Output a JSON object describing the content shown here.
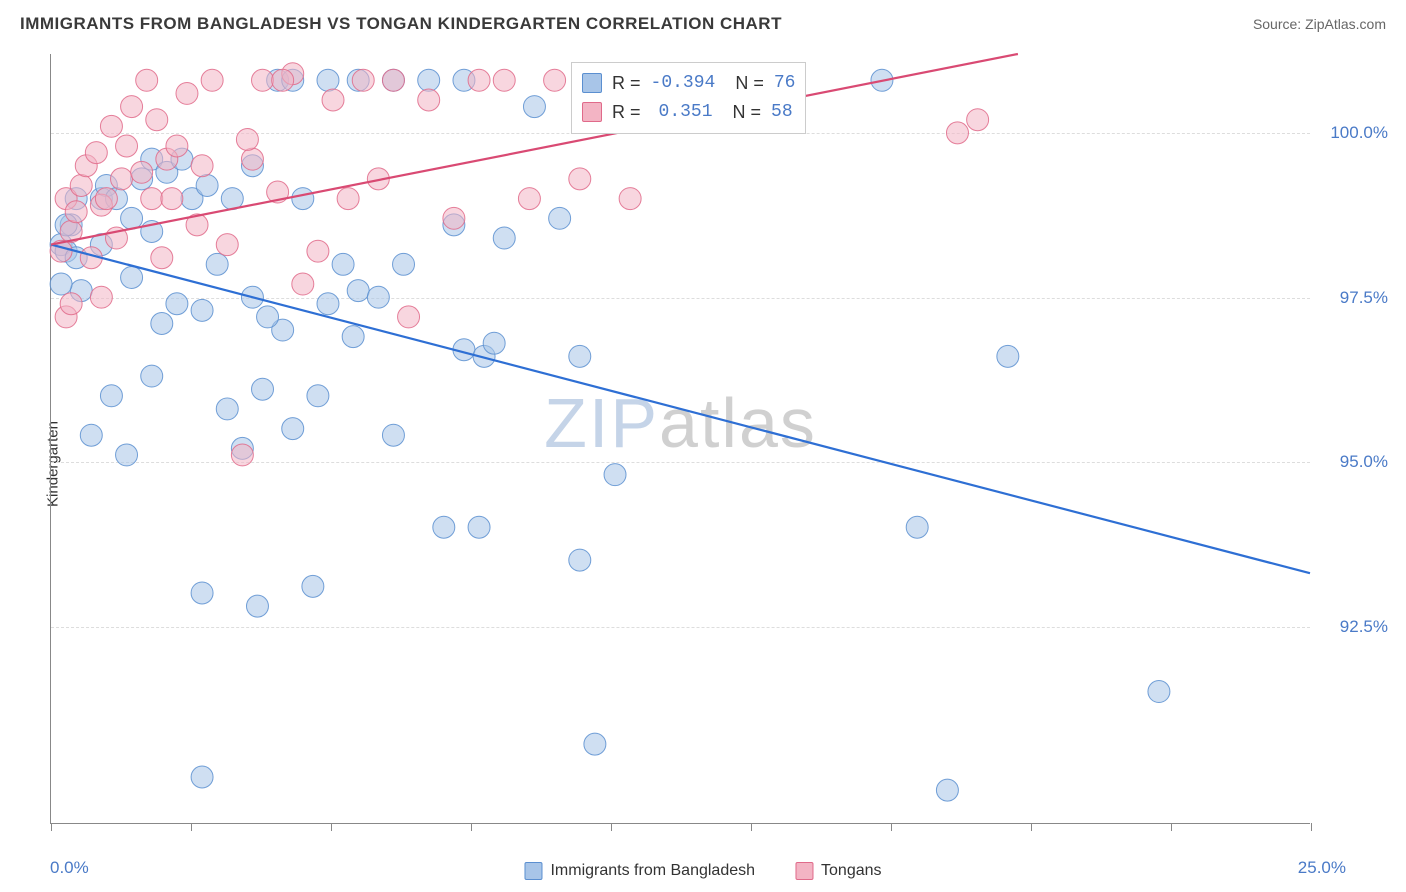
{
  "header": {
    "title": "IMMIGRANTS FROM BANGLADESH VS TONGAN KINDERGARTEN CORRELATION CHART",
    "source": "Source: ZipAtlas.com"
  },
  "watermark": {
    "part1": "ZIP",
    "part2": "atlas"
  },
  "chart": {
    "type": "scatter",
    "ylabel": "Kindergarten",
    "xlim": [
      0.0,
      25.0
    ],
    "ylim": [
      89.5,
      101.2
    ],
    "x_tick_label_min": "0.0%",
    "x_tick_label_max": "25.0%",
    "x_minor_ticks": [
      0,
      2.78,
      5.56,
      8.33,
      11.11,
      13.89,
      16.67,
      19.44,
      22.22,
      25.0
    ],
    "y_ticks": [
      {
        "value": 92.5,
        "label": "92.5%"
      },
      {
        "value": 95.0,
        "label": "95.0%"
      },
      {
        "value": 97.5,
        "label": "97.5%"
      },
      {
        "value": 100.0,
        "label": "100.0%"
      }
    ],
    "grid_color": "#dddddd",
    "axis_color": "#888888",
    "background_color": "#ffffff",
    "marker_radius": 11,
    "marker_opacity": 0.55,
    "marker_stroke_opacity": 0.85,
    "label_fontsize": 15,
    "tick_fontsize": 17,
    "tick_color": "#4a7ac7",
    "series": [
      {
        "name": "Immigrants from Bangladesh",
        "color_fill": "#a8c5e8",
        "color_stroke": "#5b8fd0",
        "trend_color": "#2e6fd4",
        "trend_width": 2.2,
        "R": "-0.394",
        "N": "76",
        "trend": {
          "x1": 0.0,
          "y1": 98.3,
          "x2": 25.0,
          "y2": 93.3
        },
        "points": [
          [
            0.2,
            98.3
          ],
          [
            0.3,
            98.2
          ],
          [
            0.5,
            98.1
          ],
          [
            0.4,
            98.6
          ],
          [
            0.5,
            99.0
          ],
          [
            0.6,
            97.6
          ],
          [
            1.0,
            99.0
          ],
          [
            1.1,
            99.2
          ],
          [
            1.3,
            99.0
          ],
          [
            1.6,
            98.7
          ],
          [
            1.8,
            99.3
          ],
          [
            2.0,
            99.6
          ],
          [
            2.3,
            99.4
          ],
          [
            2.6,
            99.6
          ],
          [
            2.8,
            99.0
          ],
          [
            3.1,
            99.2
          ],
          [
            3.6,
            99.0
          ],
          [
            4.5,
            100.8
          ],
          [
            4.8,
            100.8
          ],
          [
            5.0,
            99.0
          ],
          [
            5.5,
            100.8
          ],
          [
            6.1,
            100.8
          ],
          [
            6.8,
            100.8
          ],
          [
            7.5,
            100.8
          ],
          [
            8.2,
            100.8
          ],
          [
            8.0,
            98.6
          ],
          [
            8.2,
            96.7
          ],
          [
            9.0,
            98.4
          ],
          [
            9.6,
            100.4
          ],
          [
            10.1,
            98.7
          ],
          [
            10.5,
            96.6
          ],
          [
            10.8,
            90.7
          ],
          [
            7.8,
            94.0
          ],
          [
            8.5,
            94.0
          ],
          [
            8.6,
            96.6
          ],
          [
            8.8,
            96.8
          ],
          [
            3.0,
            90.2
          ],
          [
            4.1,
            92.8
          ],
          [
            5.2,
            93.1
          ],
          [
            5.3,
            96.0
          ],
          [
            5.5,
            97.4
          ],
          [
            5.8,
            98.0
          ],
          [
            6.0,
            96.9
          ],
          [
            6.1,
            97.6
          ],
          [
            6.5,
            97.5
          ],
          [
            6.8,
            95.4
          ],
          [
            7.0,
            98.0
          ],
          [
            1.5,
            95.1
          ],
          [
            2.0,
            96.3
          ],
          [
            2.2,
            97.1
          ],
          [
            2.5,
            97.4
          ],
          [
            3.0,
            97.3
          ],
          [
            3.5,
            95.8
          ],
          [
            3.8,
            95.2
          ],
          [
            4.0,
            97.5
          ],
          [
            4.2,
            96.1
          ],
          [
            4.6,
            97.0
          ],
          [
            4.8,
            95.5
          ],
          [
            1.2,
            96.0
          ],
          [
            0.8,
            95.4
          ],
          [
            3.0,
            93.0
          ],
          [
            10.5,
            93.5
          ],
          [
            11.2,
            94.8
          ],
          [
            17.2,
            94.0
          ],
          [
            17.8,
            90.0
          ],
          [
            22.0,
            91.5
          ],
          [
            19.0,
            96.6
          ],
          [
            1.0,
            98.3
          ],
          [
            0.3,
            98.6
          ],
          [
            0.2,
            97.7
          ],
          [
            1.6,
            97.8
          ],
          [
            2.0,
            98.5
          ],
          [
            3.3,
            98.0
          ],
          [
            4.0,
            99.5
          ],
          [
            4.3,
            97.2
          ],
          [
            16.5,
            100.8
          ]
        ]
      },
      {
        "name": "Tongans",
        "color_fill": "#f3b4c4",
        "color_stroke": "#e06a8a",
        "trend_color": "#d94a73",
        "trend_width": 2.2,
        "R": "0.351",
        "N": "58",
        "trend": {
          "x1": 0.0,
          "y1": 98.3,
          "x2": 19.2,
          "y2": 101.2
        },
        "points": [
          [
            0.2,
            98.2
          ],
          [
            0.3,
            97.2
          ],
          [
            0.3,
            99.0
          ],
          [
            0.4,
            98.5
          ],
          [
            0.5,
            98.8
          ],
          [
            0.6,
            99.2
          ],
          [
            0.7,
            99.5
          ],
          [
            0.8,
            98.1
          ],
          [
            0.9,
            99.7
          ],
          [
            1.0,
            98.9
          ],
          [
            1.1,
            99.0
          ],
          [
            1.2,
            100.1
          ],
          [
            1.3,
            98.4
          ],
          [
            1.4,
            99.3
          ],
          [
            1.5,
            99.8
          ],
          [
            1.6,
            100.4
          ],
          [
            1.8,
            99.4
          ],
          [
            1.9,
            100.8
          ],
          [
            2.0,
            99.0
          ],
          [
            2.1,
            100.2
          ],
          [
            2.2,
            98.1
          ],
          [
            2.3,
            99.6
          ],
          [
            2.5,
            99.8
          ],
          [
            2.7,
            100.6
          ],
          [
            2.9,
            98.6
          ],
          [
            3.0,
            99.5
          ],
          [
            3.2,
            100.8
          ],
          [
            3.5,
            98.3
          ],
          [
            3.8,
            95.1
          ],
          [
            4.0,
            99.6
          ],
          [
            4.2,
            100.8
          ],
          [
            4.5,
            99.1
          ],
          [
            4.8,
            100.9
          ],
          [
            5.0,
            97.7
          ],
          [
            5.3,
            98.2
          ],
          [
            5.6,
            100.5
          ],
          [
            5.9,
            99.0
          ],
          [
            6.2,
            100.8
          ],
          [
            6.5,
            99.3
          ],
          [
            6.8,
            100.8
          ],
          [
            7.1,
            97.2
          ],
          [
            7.5,
            100.5
          ],
          [
            8.0,
            98.7
          ],
          [
            8.5,
            100.8
          ],
          [
            9.0,
            100.8
          ],
          [
            9.5,
            99.0
          ],
          [
            10.0,
            100.8
          ],
          [
            10.5,
            99.3
          ],
          [
            11.0,
            100.3
          ],
          [
            11.5,
            99.0
          ],
          [
            12.0,
            100.8
          ],
          [
            4.6,
            100.8
          ],
          [
            3.9,
            99.9
          ],
          [
            0.4,
            97.4
          ],
          [
            18.0,
            100.0
          ],
          [
            18.4,
            100.2
          ],
          [
            1.0,
            97.5
          ],
          [
            2.4,
            99.0
          ]
        ]
      }
    ],
    "legend": {
      "stats_label_R": "R =",
      "stats_label_N": "N ="
    }
  }
}
